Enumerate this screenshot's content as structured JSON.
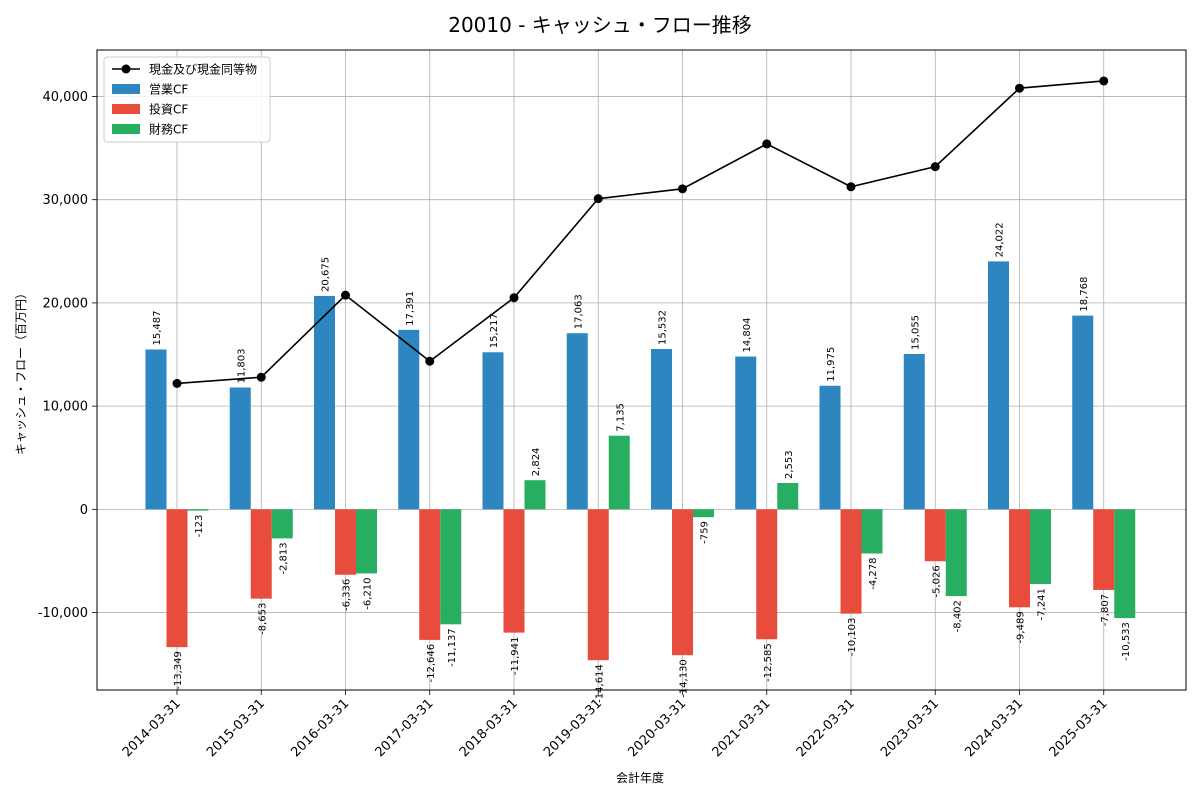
{
  "chart_data": {
    "type": "bar",
    "title": "20010 - キャッシュ・フロー推移",
    "xlabel": "会計年度",
    "ylabel": "キャッシュ・フロー（百万円）",
    "ylim": [
      -17500,
      44500
    ],
    "yticks": [
      -10000,
      0,
      10000,
      20000,
      30000,
      40000
    ],
    "ytick_labels": [
      "-10,000",
      "0",
      "10,000",
      "20,000",
      "30,000",
      "40,000"
    ],
    "grid": true,
    "legend_position": "top-left",
    "categories": [
      "2014-03-31",
      "2015-03-31",
      "2016-03-31",
      "2017-03-31",
      "2018-03-31",
      "2019-03-31",
      "2020-03-31",
      "2021-03-31",
      "2022-03-31",
      "2023-03-31",
      "2024-03-31",
      "2025-03-31"
    ],
    "series": [
      {
        "name": "営業CF",
        "kind": "bar",
        "color": "#2e86c1",
        "values": [
          15487,
          11803,
          20675,
          17391,
          15217,
          17063,
          15532,
          14804,
          11975,
          15055,
          24022,
          18768
        ],
        "labels": [
          "15,487",
          "11,803",
          "20,675",
          "17,391",
          "15,217",
          "17,063",
          "15,532",
          "14,804",
          "11,975",
          "15,055",
          "24,022",
          "18,768"
        ]
      },
      {
        "name": "投資CF",
        "kind": "bar",
        "color": "#e74c3c",
        "values": [
          -13349,
          -8653,
          -6336,
          -12646,
          -11941,
          -14614,
          -14130,
          -12585,
          -10103,
          -5026,
          -9489,
          -7807
        ],
        "labels": [
          "-13,349",
          "-8,653",
          "-6,336",
          "-12,646",
          "-11,941",
          "-14,614",
          "-14,130",
          "-12,585",
          "-10,103",
          "-5,026",
          "-9,489",
          "-7,807"
        ]
      },
      {
        "name": "財務CF",
        "kind": "bar",
        "color": "#27ae60",
        "values": [
          -123,
          -2813,
          -6210,
          -11137,
          2824,
          7135,
          -759,
          2553,
          -4278,
          -8402,
          -7241,
          -10533
        ],
        "labels": [
          "-123",
          "-2,813",
          "-6,210",
          "-11,137",
          "2,824",
          "7,135",
          "-759",
          "2,553",
          "-4,278",
          "-8,402",
          "-7,241",
          "-10,533"
        ]
      },
      {
        "name": "現金及び現金同等物",
        "kind": "line",
        "color": "#000000",
        "values": [
          12200,
          12800,
          20750,
          14350,
          20500,
          30100,
          31050,
          35400,
          31250,
          33200,
          40800,
          41500
        ]
      }
    ]
  }
}
